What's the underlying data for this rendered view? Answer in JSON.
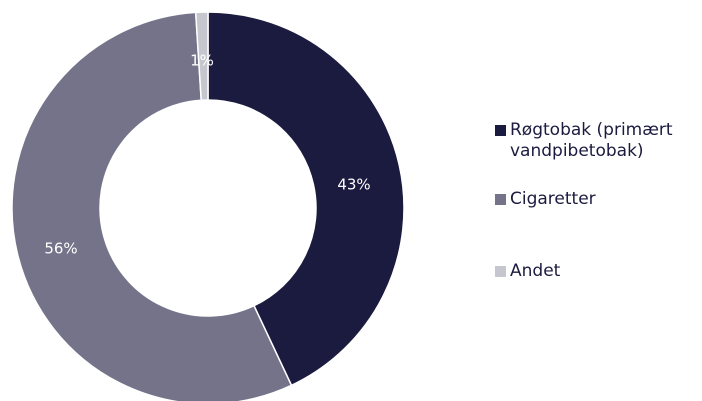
{
  "chart_data": {
    "type": "pie",
    "donut": true,
    "title": "",
    "categories": [
      "Røgtobak (primært vandpibetobak)",
      "Cigaretter",
      "Andet"
    ],
    "values": [
      43,
      56,
      1
    ],
    "labels": [
      "43%",
      "56%",
      "1%"
    ],
    "colors": [
      "#1b1a3f",
      "#74738a",
      "#c6c6ce"
    ],
    "legend_position": "right"
  }
}
